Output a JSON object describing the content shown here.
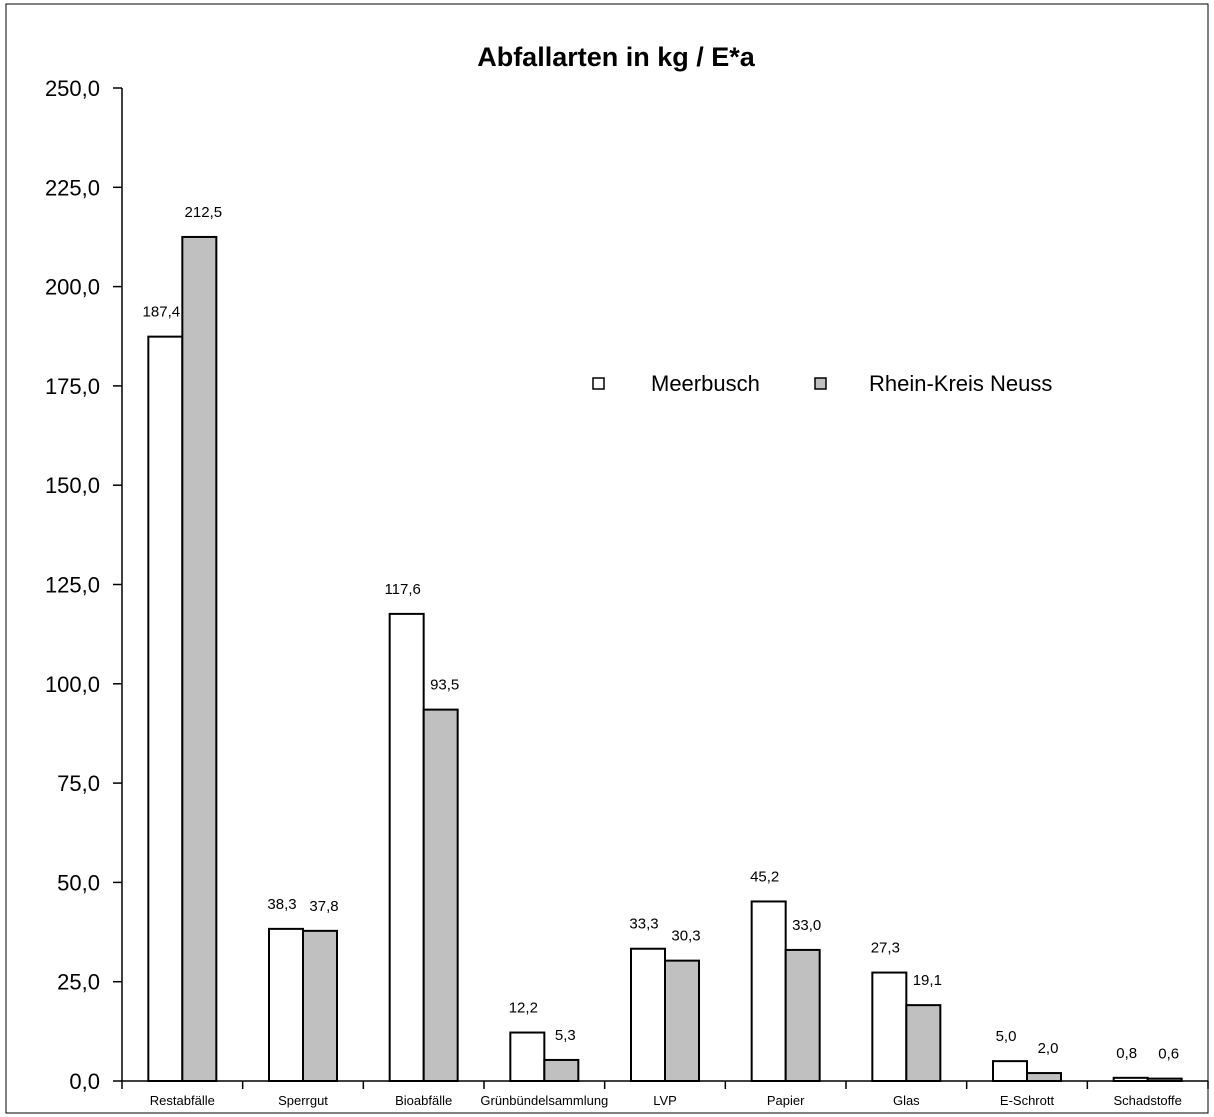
{
  "chart_data": {
    "type": "bar",
    "title": "Abfallarten in kg / E*a",
    "xlabel": "",
    "ylabel": "",
    "ylim": [
      0,
      250
    ],
    "yticks": [
      "0,0",
      "25,0",
      "50,0",
      "75,0",
      "100,0",
      "125,0",
      "150,0",
      "175,0",
      "200,0",
      "225,0",
      "250,0"
    ],
    "grid": false,
    "legend_position": "top-right",
    "categories": [
      "Restabfälle",
      "Sperrgut",
      "Bioabfälle",
      "Grünbündelsammlung",
      "LVP",
      "Papier",
      "Glas",
      "E-Schrott",
      "Schadstoffe"
    ],
    "series": [
      {
        "name": "Meerbusch",
        "color": "#ffffff",
        "values": [
          187.4,
          38.3,
          117.6,
          12.2,
          33.3,
          45.2,
          27.3,
          5.0,
          0.8
        ],
        "labels": [
          "187,4",
          "38,3",
          "117,6",
          "12,2",
          "33,3",
          "45,2",
          "27,3",
          "5,0",
          "0,8"
        ]
      },
      {
        "name": "Rhein-Kreis Neuss",
        "color": "#c0c0c0",
        "values": [
          212.5,
          37.8,
          93.5,
          5.3,
          30.3,
          33.0,
          19.1,
          2.0,
          0.6
        ],
        "labels": [
          "212,5",
          "37,8",
          "93,5",
          "5,3",
          "30,3",
          "33,0",
          "19,1",
          "2,0",
          "0,6"
        ]
      }
    ]
  }
}
